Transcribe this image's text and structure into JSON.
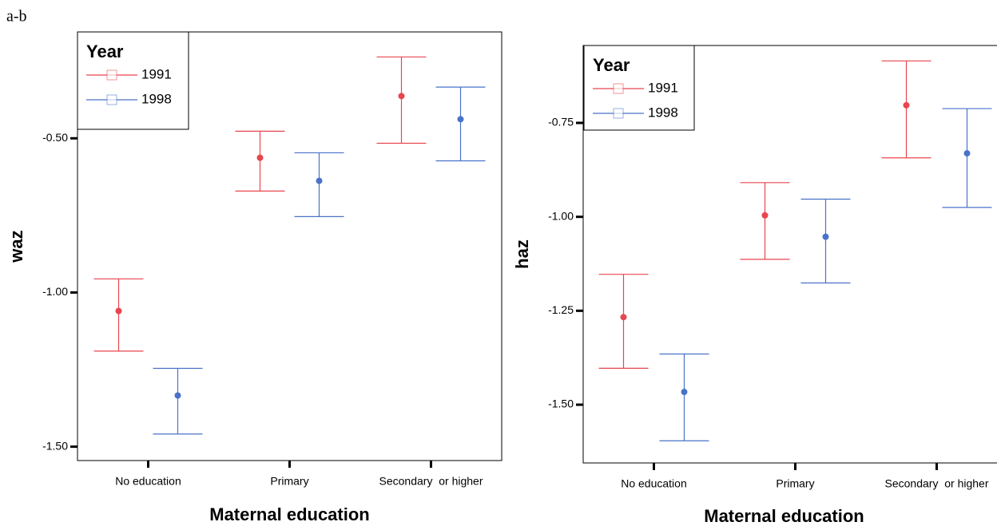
{
  "caption": "a-b",
  "chart_data": [
    {
      "type": "errorbar",
      "ylabel": "waz",
      "xlabel": "Maternal education",
      "legend_title": "Year",
      "categories": [
        "No education",
        "Primary",
        "Secondary  or higher"
      ],
      "series": [
        {
          "name": "1991",
          "color": "#e8464f",
          "values": [
            -1.06,
            -0.563,
            -0.363
          ],
          "lower": [
            -1.19,
            -0.671,
            -0.516
          ],
          "upper": [
            -0.956,
            -0.477,
            -0.236
          ]
        },
        {
          "name": "1998",
          "color": "#4a72c8",
          "values": [
            -1.334,
            -0.638,
            -0.438
          ],
          "lower": [
            -1.459,
            -0.754,
            -0.573
          ],
          "upper": [
            -1.246,
            -0.547,
            -0.334
          ]
        }
      ],
      "ylim": [
        -1.545,
        -0.155
      ],
      "yticks": [
        {
          "value": -0.5,
          "label": "-0.50"
        },
        {
          "value": -1,
          "label": "-1.00"
        },
        {
          "value": -1.5,
          "label": "-1.50"
        }
      ]
    },
    {
      "type": "errorbar",
      "ylabel": "haz",
      "xlabel": "Maternal education",
      "legend_title": "Year",
      "categories": [
        "No education",
        "Primary",
        "Secondary  or higher"
      ],
      "series": [
        {
          "name": "1991",
          "color": "#e8464f",
          "values": [
            -1.267,
            -0.996,
            -0.703
          ],
          "lower": [
            -1.403,
            -1.113,
            -0.843
          ],
          "upper": [
            -1.153,
            -0.909,
            -0.585
          ]
        },
        {
          "name": "1998",
          "color": "#4a72c8",
          "values": [
            -1.466,
            -1.053,
            -0.831
          ],
          "lower": [
            -1.596,
            -1.176,
            -0.975
          ],
          "upper": [
            -1.365,
            -0.953,
            -0.712
          ]
        }
      ],
      "ylim": [
        -1.655,
        -0.544
      ],
      "yticks": [
        -0.75,
        {
          "value": -1,
          "label": "-1.00"
        },
        -1.25,
        {
          "value": -1.5,
          "label": "-1.50"
        }
      ]
    }
  ]
}
